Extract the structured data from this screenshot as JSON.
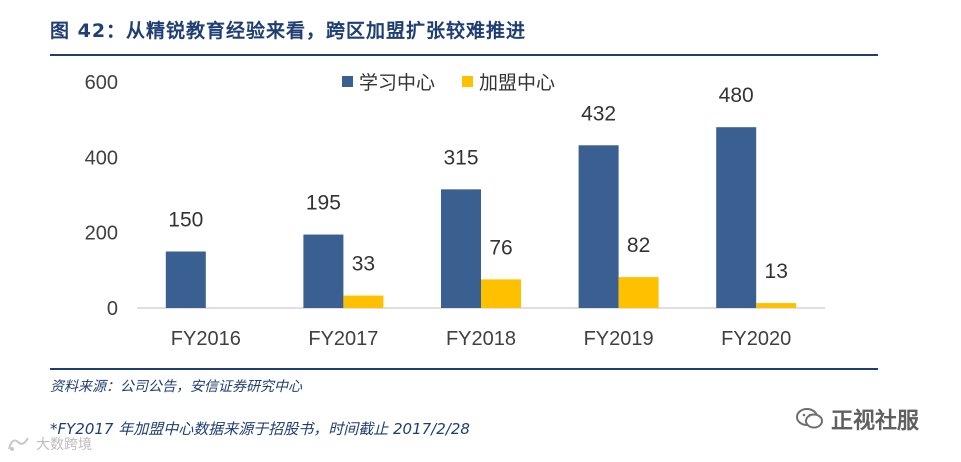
{
  "header": {
    "title": "图 42：从精锐教育经验来看，跨区加盟扩张较难推进"
  },
  "chart_data": {
    "type": "bar",
    "categories": [
      "FY2016",
      "FY2017",
      "FY2018",
      "FY2019",
      "FY2020"
    ],
    "series": [
      {
        "name": "学习中心",
        "color": "#3a5f91",
        "values": [
          150,
          195,
          315,
          432,
          480
        ]
      },
      {
        "name": "加盟中心",
        "color": "#ffc000",
        "values": [
          null,
          33,
          76,
          82,
          13
        ]
      }
    ],
    "y_ticks": [
      "0",
      "200",
      "400",
      "600"
    ],
    "ylim": [
      0,
      600
    ],
    "grid": false,
    "legend_position": "top-center"
  },
  "footer": {
    "source": "资料来源：公司公告，安信证券研究中心",
    "note": "*FY2017 年加盟中心数据来源于招股书，时间截止 2017/2/28"
  },
  "watermarks": {
    "right_text": "正视社服",
    "right_icon": "wechat-icon",
    "left_text": "大数跨境",
    "left_icon": "brand-logo-icon"
  }
}
